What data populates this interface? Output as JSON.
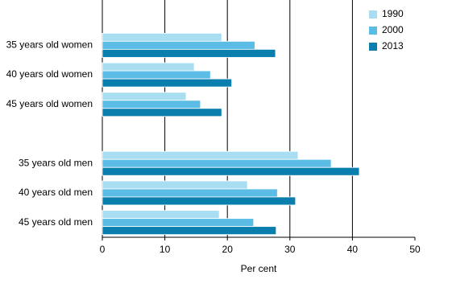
{
  "chart_data": {
    "type": "barh",
    "categories": [
      "35 years old women",
      "40 years old women",
      "45 years old women",
      null,
      "35 years old men",
      "40 years old men",
      "45 years old men"
    ],
    "series": [
      {
        "name": "1990",
        "color": "#a9def2",
        "values": [
          19.1,
          14.7,
          13.4,
          null,
          31.3,
          23.2,
          18.7
        ]
      },
      {
        "name": "2000",
        "color": "#5bbde6",
        "values": [
          24.4,
          17.3,
          15.7,
          null,
          36.6,
          28.0,
          24.2
        ]
      },
      {
        "name": "2013",
        "color": "#0a7fad",
        "values": [
          27.7,
          20.7,
          19.1,
          null,
          41.1,
          30.9,
          27.8
        ]
      }
    ],
    "xlabel": "Per cent",
    "xlim": [
      0,
      50
    ],
    "xticks": [
      0,
      10,
      20,
      30,
      40,
      50
    ],
    "grid": true,
    "legend": "upper right"
  }
}
